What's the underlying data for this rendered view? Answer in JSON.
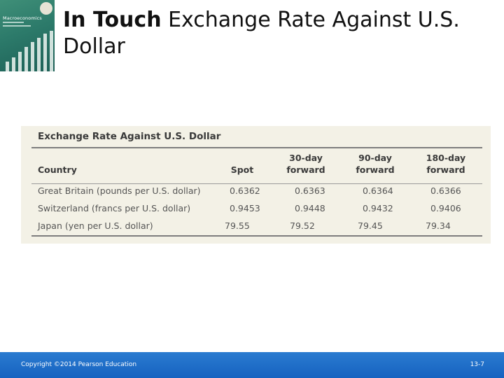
{
  "book": {
    "badge": "GLOBAL EDITION",
    "title": "Macroeconomics"
  },
  "slide": {
    "title_lead": "In Touch",
    "title_rest": " Exchange Rate Against U.S. Dollar"
  },
  "table": {
    "heading": "Exchange Rate Against U.S. Dollar",
    "columns": [
      {
        "line1": "",
        "line2": "Country"
      },
      {
        "line1": "",
        "line2": "Spot"
      },
      {
        "line1": "30-day",
        "line2": "forward"
      },
      {
        "line1": "90-day",
        "line2": "forward"
      },
      {
        "line1": "180-day",
        "line2": "forward"
      }
    ],
    "rows": [
      {
        "country": "Great Britain (pounds per U.S. dollar)",
        "spot": "0.6362",
        "f30": "0.6363",
        "f90": "0.6364",
        "f180": "0.6366"
      },
      {
        "country": "Switzerland (francs per U.S. dollar)",
        "spot": "0.9453",
        "f30": "0.9448",
        "f90": "0.9432",
        "f180": "0.9406"
      },
      {
        "country": "Japan (yen per U.S. dollar)",
        "spot": "79.55",
        "f30": "79.52",
        "f90": "79.45",
        "f180": "79.34"
      }
    ]
  },
  "footer": {
    "copyright": "Copyright ©2014 Pearson Education",
    "page": "13-7"
  },
  "colors": {
    "footer_bar": "#1f6fc8",
    "table_background": "#f3f1e6",
    "cover": "#2c7a6a"
  }
}
